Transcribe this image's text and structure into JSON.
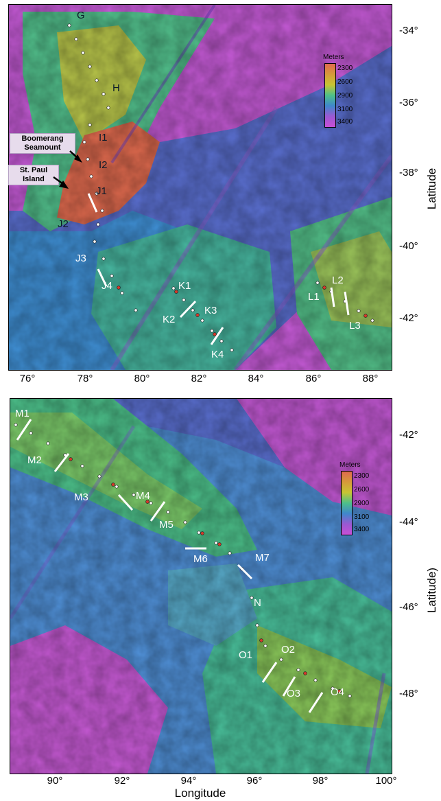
{
  "colors": {
    "depth_shallow": "#e06a4e",
    "depth_2600": "#c7c533",
    "depth_2900": "#4cc08a",
    "depth_3100": "#3f86cc",
    "depth_deep": "#c94fd6",
    "segment_line": "#ffffff"
  },
  "legend": {
    "title": "Meters",
    "labels": [
      "2300",
      "2600",
      "2900",
      "3100",
      "3400"
    ]
  },
  "top_map": {
    "lat_ticks": [
      "-34°",
      "-36°",
      "-38°",
      "-40°",
      "-42°"
    ],
    "lon_ticks": [
      "76°",
      "78°",
      "80°",
      "82°",
      "84°",
      "86°",
      "88°"
    ],
    "y_axis_title": "Latitude",
    "callouts": [
      {
        "id": "boomerang",
        "text": "Boomerang Seamount"
      },
      {
        "id": "stpaul",
        "text": "St. Paul Island"
      }
    ],
    "segments": [
      "G",
      "H",
      "I1",
      "I2",
      "J1",
      "J2",
      "J3",
      "J4",
      "K1",
      "K2",
      "K3",
      "K4",
      "L1",
      "L2",
      "L3"
    ]
  },
  "bottom_map": {
    "lat_ticks": [
      "-42°",
      "-44°",
      "-46°",
      "-48°"
    ],
    "lon_ticks": [
      "90°",
      "92°",
      "94°",
      "96°",
      "98°",
      "100°"
    ],
    "y_axis_title": "Latitude)",
    "x_axis_title": "Longitude",
    "segments": [
      "M1",
      "M2",
      "M3",
      "M4",
      "M5",
      "M6",
      "M7",
      "N",
      "O1",
      "O2",
      "O3",
      "O4"
    ]
  }
}
